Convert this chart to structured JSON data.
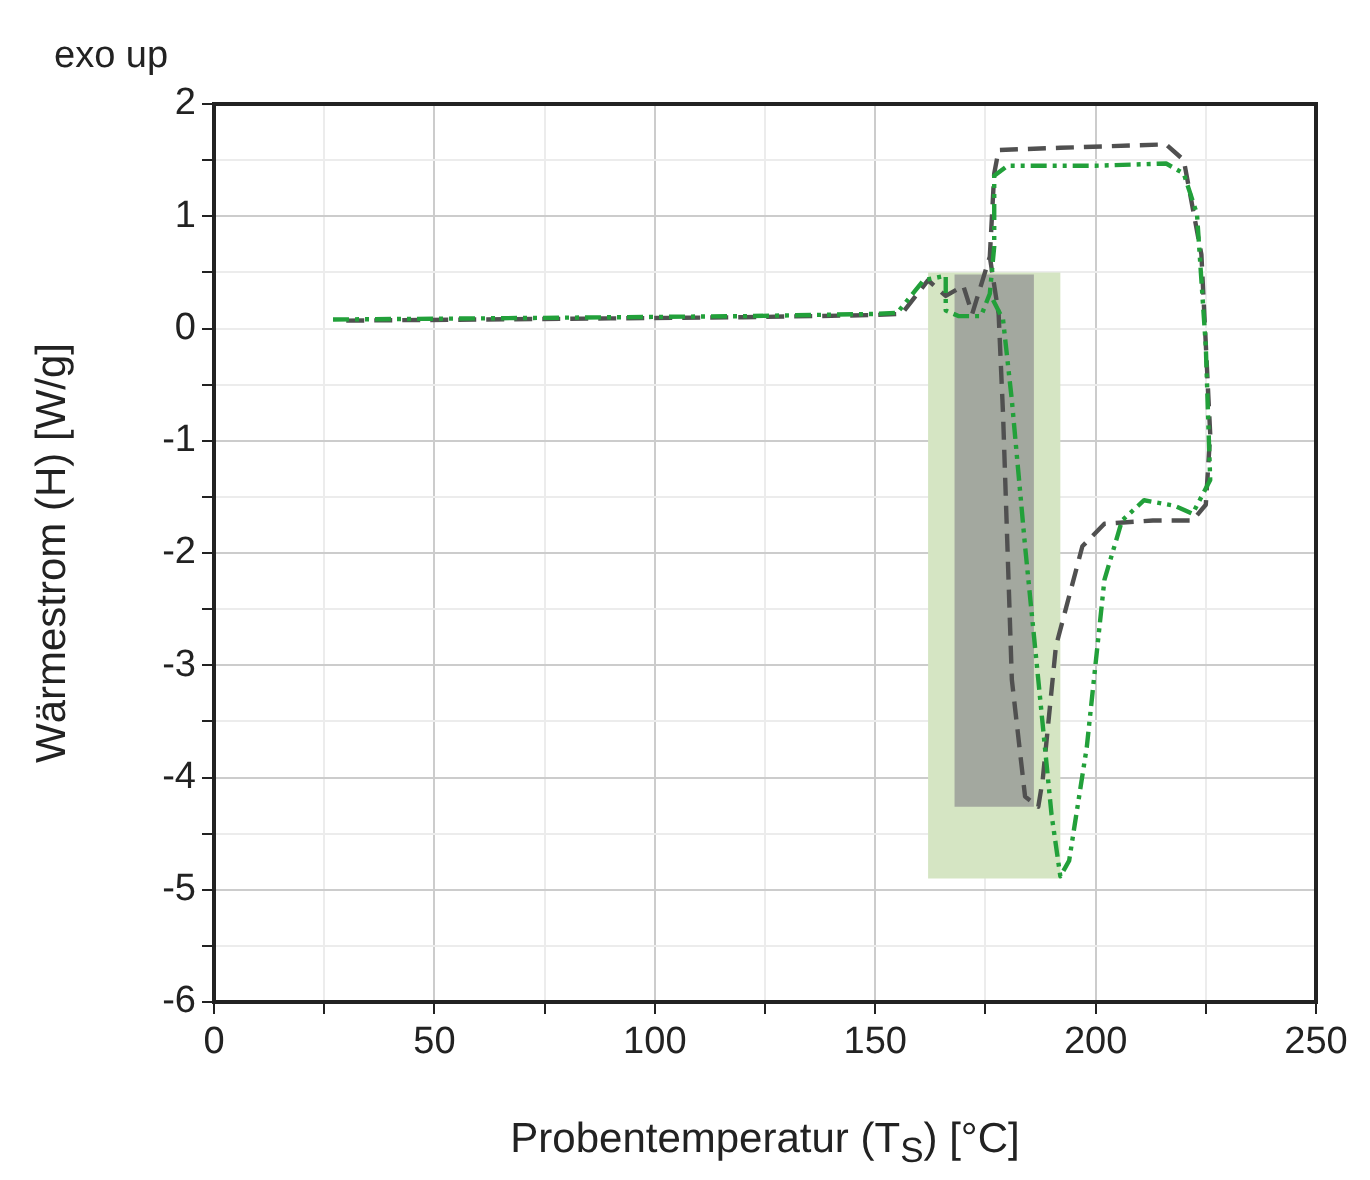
{
  "chart_data": {
    "type": "line",
    "xlabel": "Probentemperatur (T$_{S}$) [°C]",
    "ylabel": "Wärmestrom (H) [W/g]",
    "annotations": [
      "exo up"
    ],
    "xlim": [
      0,
      250
    ],
    "xticks": [
      0,
      {
        "value": 25,
        "label": null
      },
      50,
      {
        "value": 75,
        "label": null
      },
      100,
      {
        "value": 125,
        "label": null
      },
      150,
      {
        "value": 175,
        "label": null
      },
      200,
      {
        "value": 225,
        "label": null
      },
      250
    ],
    "ylim": [
      -6,
      2
    ],
    "yticks": [
      -6,
      {
        "value": -5.5,
        "label": null
      },
      -5,
      {
        "value": -4.5,
        "label": null
      },
      -4,
      {
        "value": -3.5,
        "label": null
      },
      -3,
      {
        "value": -2.5,
        "label": null
      },
      -2,
      {
        "value": -1.5,
        "label": null
      },
      -1,
      {
        "value": -0.5,
        "label": null
      },
      0,
      {
        "value": 0.5,
        "label": null
      },
      1,
      {
        "value": 1.5,
        "label": null
      },
      2
    ],
    "grid": true,
    "legend": false,
    "marker": "none",
    "series": [
      {
        "type": "area",
        "color": "#a3a89f",
        "x": [
          168,
          168,
          186,
          186
        ],
        "values": [
          -4.26,
          0.48,
          0.48,
          -4.26
        ]
      },
      {
        "type": "area",
        "color": "#d5e5c3",
        "x": [
          162,
          162,
          192,
          192
        ],
        "values": [
          -4.9,
          0.5,
          0.5,
          -4.9
        ]
      },
      {
        "color": "#22a03a",
        "line_style": "dotted",
        "x": [
          27,
          60,
          90,
          120,
          150,
          155,
          161,
          166,
          166,
          169,
          174,
          176,
          177,
          177,
          180,
          200,
          216,
          220,
          223,
          225,
          226,
          222,
          218,
          211,
          206,
          202,
          198,
          194,
          192,
          190,
          187,
          184,
          181,
          179,
          176
        ],
        "values": [
          0.08,
          0.09,
          0.1,
          0.11,
          0.13,
          0.14,
          0.43,
          0.47,
          0.16,
          0.11,
          0.11,
          0.31,
          0.73,
          1.36,
          1.45,
          1.45,
          1.47,
          1.38,
          1.02,
          -0.16,
          -1.35,
          -1.65,
          -1.58,
          -1.53,
          -1.71,
          -2.24,
          -3.73,
          -4.74,
          -4.88,
          -4.33,
          -3.13,
          -1.94,
          -0.64,
          0.08,
          0.31
        ]
      },
      {
        "color": "#505050",
        "line_style": "dashed",
        "x": [
          30,
          60,
          90,
          120,
          150,
          156,
          162,
          166,
          170,
          172,
          176,
          177,
          178,
          192,
          216,
          220,
          224,
          226,
          225,
          222,
          213,
          202,
          197,
          191,
          188,
          187,
          184,
          181,
          179,
          178,
          176
        ],
        "values": [
          0.07,
          0.08,
          0.09,
          0.1,
          0.12,
          0.13,
          0.43,
          0.29,
          0.38,
          0.13,
          0.64,
          1.38,
          1.59,
          1.61,
          1.64,
          1.5,
          0.66,
          -0.94,
          -1.57,
          -1.71,
          -1.71,
          -1.74,
          -1.94,
          -2.83,
          -4.02,
          -4.26,
          -4.17,
          -3.13,
          -0.76,
          0.13,
          0.64
        ]
      }
    ]
  }
}
